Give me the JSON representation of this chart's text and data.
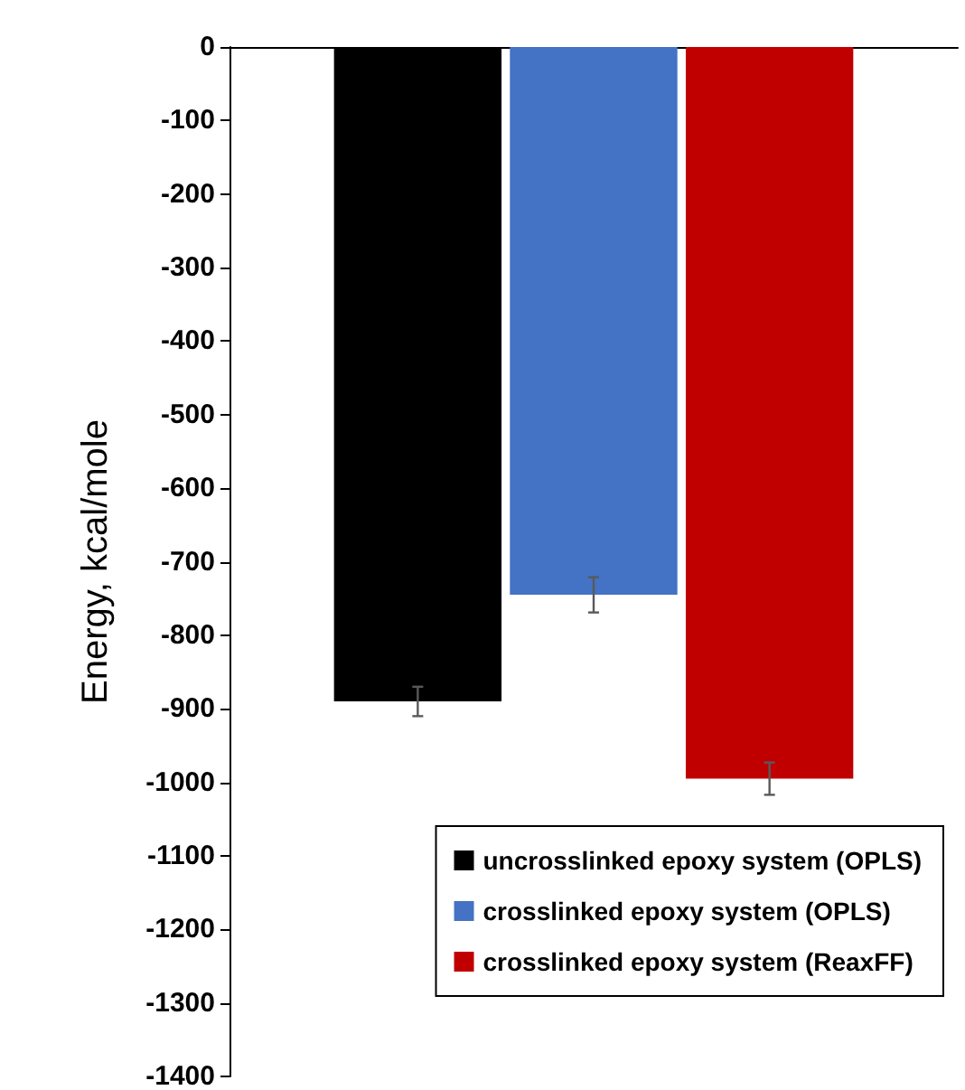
{
  "chart_data": {
    "type": "bar",
    "ylabel": "Energy, kcal/mole",
    "categories": [
      null
    ],
    "series": [
      {
        "name": "uncrosslinked epoxy system (OPLS)",
        "color": "#000000",
        "values": [
          -890
        ],
        "errors": [
          20
        ]
      },
      {
        "name": "crosslinked epoxy system (OPLS)",
        "color": "#4472c4",
        "values": [
          -745
        ],
        "errors": [
          24
        ]
      },
      {
        "name": "crosslinked epoxy system (ReaxFF)",
        "color": "#c00000",
        "values": [
          -995
        ],
        "errors": [
          22
        ]
      }
    ],
    "ylim": [
      -1400,
      0
    ],
    "yticks": [
      0,
      -100,
      -200,
      -300,
      -400,
      -500,
      -600,
      -700,
      -800,
      -900,
      -1000,
      -1100,
      -1200,
      -1300,
      -1400
    ],
    "grid": false,
    "legend": "bottom right"
  }
}
